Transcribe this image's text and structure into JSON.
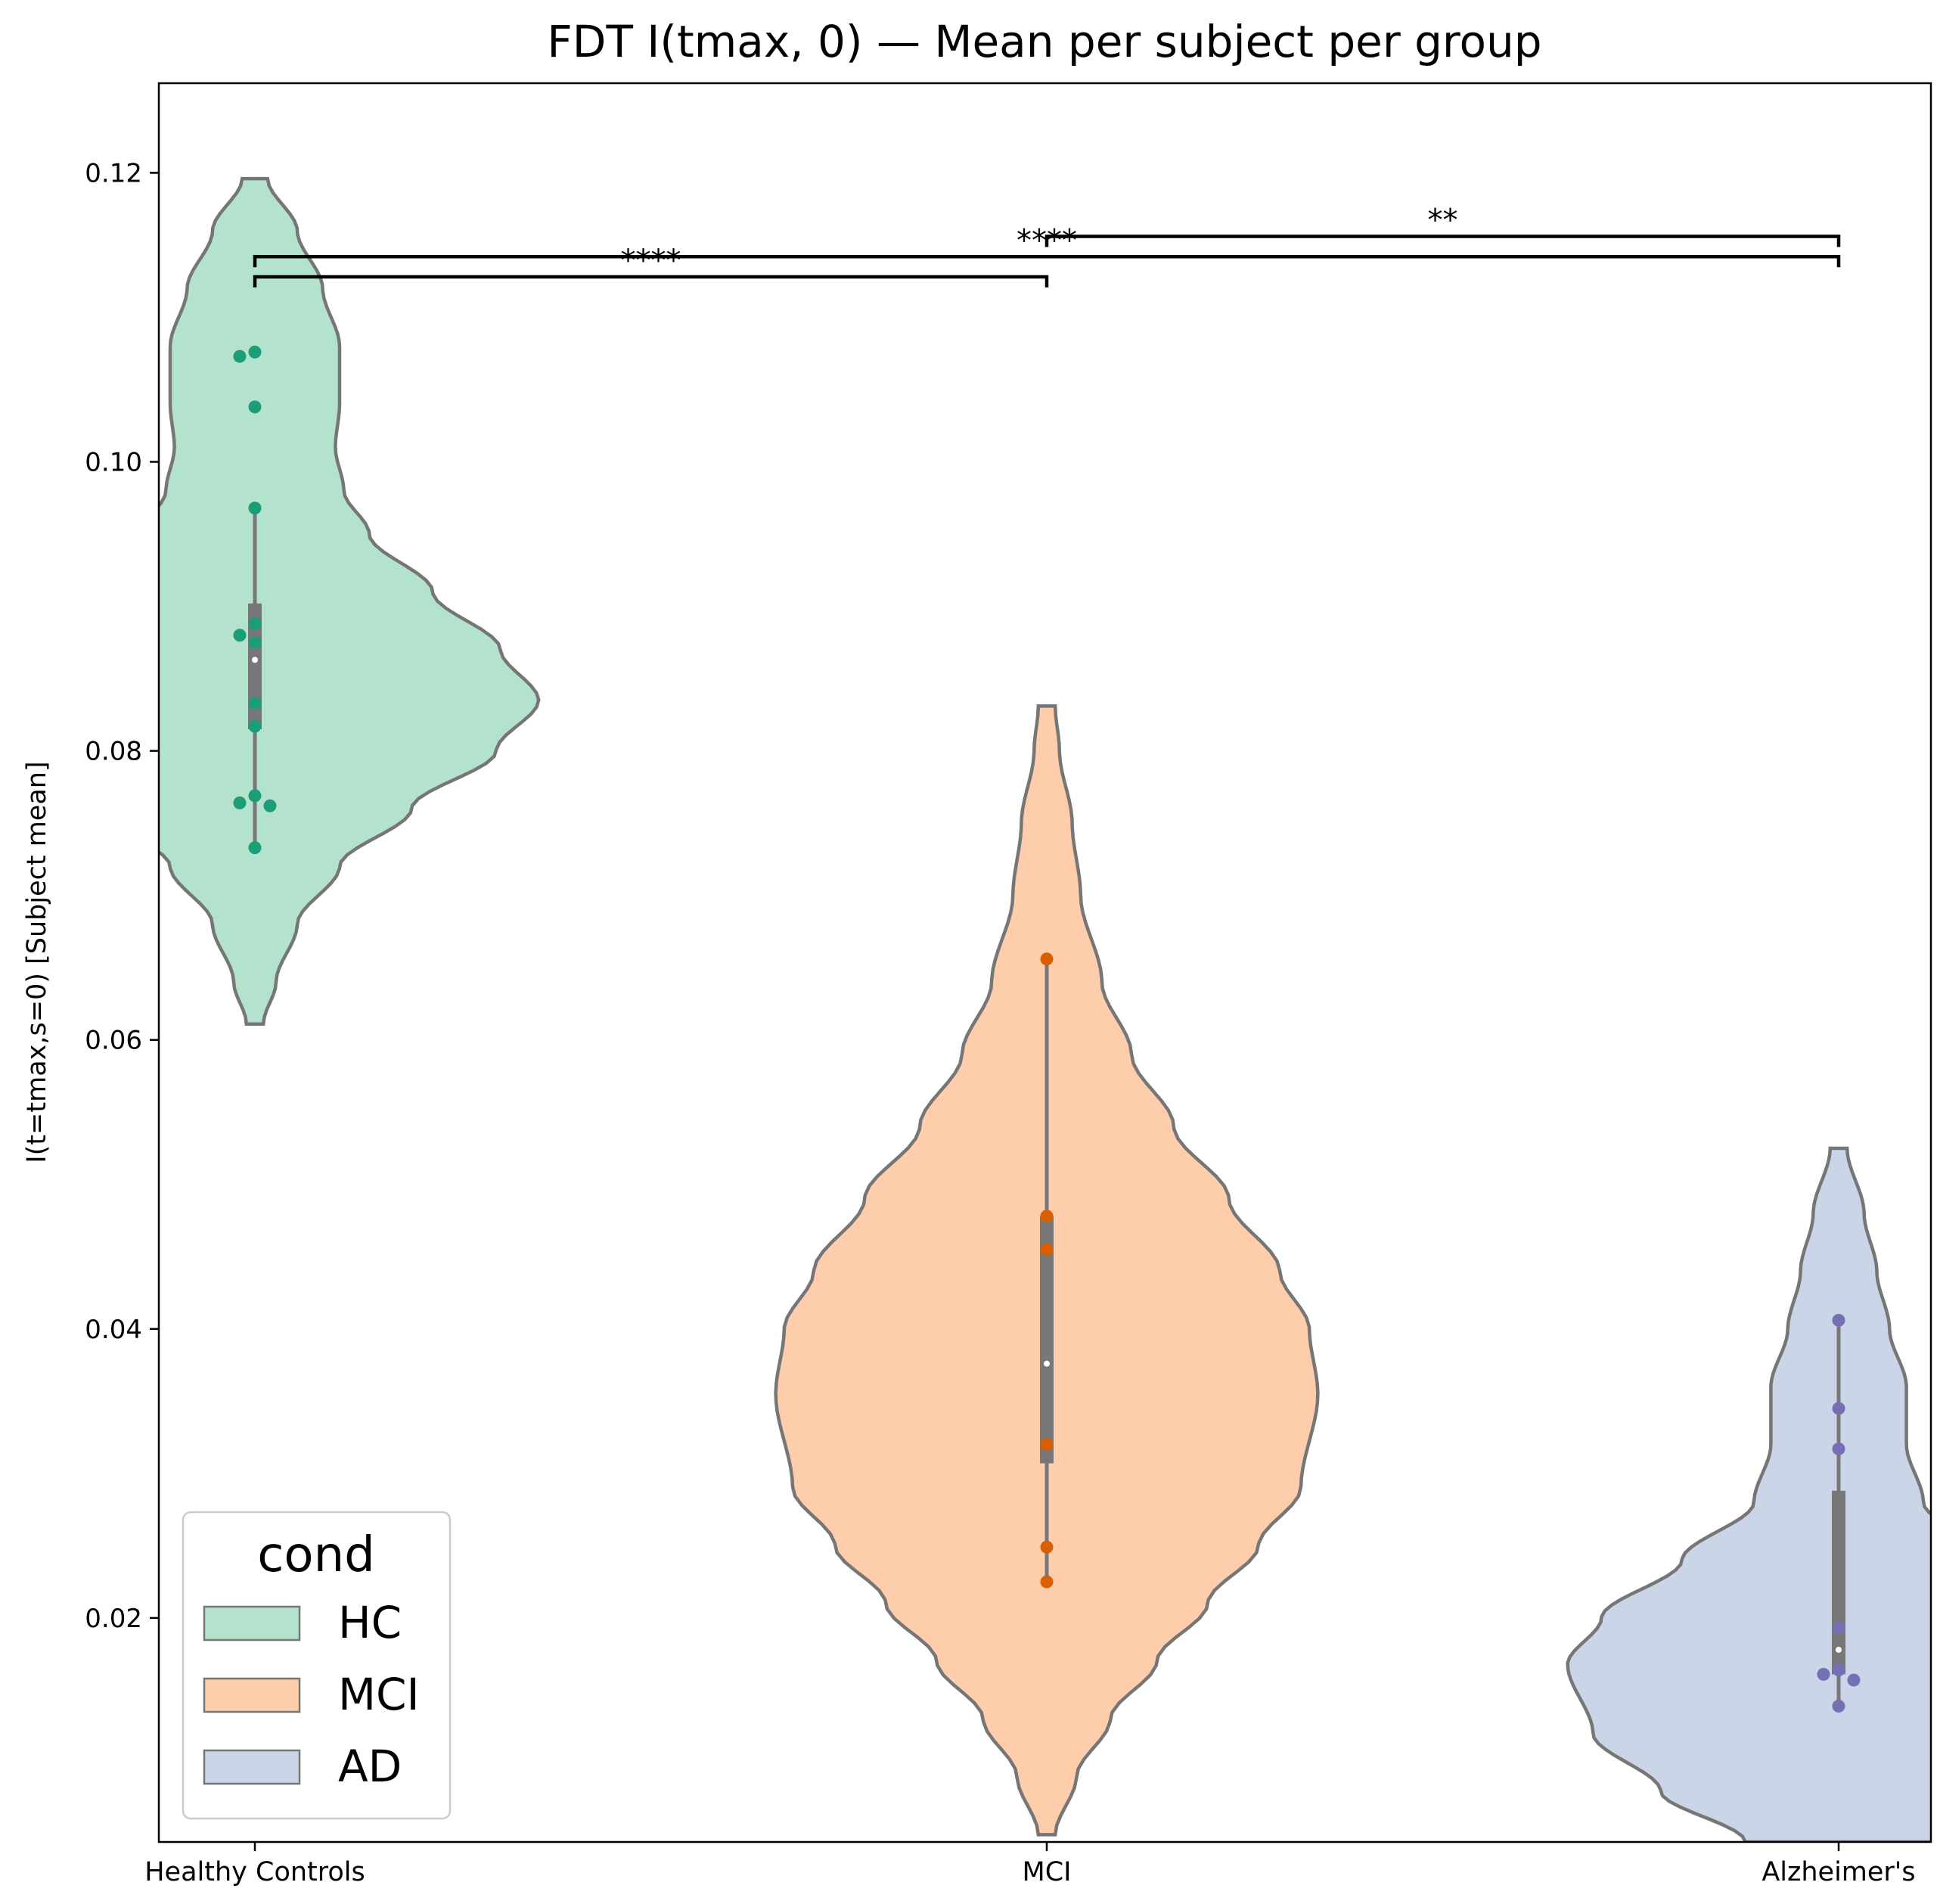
{
  "chart_data": {
    "type": "violin",
    "title": "FDT I(tmax, 0) — Mean per subject per group",
    "xlabel": "",
    "ylabel": "I(t=tmax,s=0) [Subject mean]",
    "ylim": [
      0.0045,
      0.1262
    ],
    "yticks": [
      "0.02",
      "0.04",
      "0.06",
      "0.08",
      "0.10",
      "0.12"
    ],
    "categories": [
      "Healthy Controls",
      "MCI",
      "Alzheimer's"
    ],
    "grid": false,
    "legend": {
      "title": "cond",
      "position": "lower-left",
      "entries": [
        {
          "label": "HC",
          "color": "#b3e2cd"
        },
        {
          "label": "MCI",
          "color": "#fdcdac"
        },
        {
          "label": "AD",
          "color": "#cbd5e8"
        }
      ]
    },
    "series": [
      {
        "group": "HC",
        "fill_color": "#b3e2cd",
        "point_color": "#1b9e77",
        "points": [
          0.1076,
          0.1073,
          0.1038,
          0.0968,
          0.0888,
          0.088,
          0.0875,
          0.0833,
          0.0817,
          0.0769,
          0.0764,
          0.0762,
          0.0733
        ],
        "median": 0.0863,
        "q1": 0.0815,
        "q3": 0.0902,
        "whisker_low": 0.0733,
        "whisker_high": 0.0968,
        "kde_min": 0.0611,
        "kde_max": 0.1196,
        "density": [
          [
            0.0611,
            0.02
          ],
          [
            0.064,
            0.05
          ],
          [
            0.068,
            0.1
          ],
          [
            0.072,
            0.2
          ],
          [
            0.076,
            0.37
          ],
          [
            0.08,
            0.57
          ],
          [
            0.0835,
            0.67
          ],
          [
            0.087,
            0.58
          ],
          [
            0.091,
            0.42
          ],
          [
            0.095,
            0.27
          ],
          [
            0.098,
            0.21
          ],
          [
            0.101,
            0.19
          ],
          [
            0.104,
            0.2
          ],
          [
            0.108,
            0.2
          ],
          [
            0.112,
            0.16
          ],
          [
            0.116,
            0.1
          ],
          [
            0.1196,
            0.03
          ]
        ]
      },
      {
        "group": "MCI",
        "fill_color": "#fdcdac",
        "point_color": "#d95f02",
        "points": [
          0.0656,
          0.0478,
          0.0455,
          0.032,
          0.0249,
          0.0225
        ],
        "median": 0.0376,
        "q1": 0.0307,
        "q3": 0.0478,
        "whisker_low": 0.0225,
        "whisker_high": 0.0656,
        "kde_min": 0.005,
        "kde_max": 0.0831,
        "density": [
          [
            0.005,
            0.02
          ],
          [
            0.009,
            0.07
          ],
          [
            0.013,
            0.15
          ],
          [
            0.017,
            0.26
          ],
          [
            0.021,
            0.38
          ],
          [
            0.025,
            0.5
          ],
          [
            0.029,
            0.6
          ],
          [
            0.0355,
            0.64
          ],
          [
            0.04,
            0.62
          ],
          [
            0.044,
            0.55
          ],
          [
            0.049,
            0.43
          ],
          [
            0.054,
            0.3
          ],
          [
            0.059,
            0.2
          ],
          [
            0.064,
            0.13
          ],
          [
            0.07,
            0.08
          ],
          [
            0.075,
            0.06
          ],
          [
            0.08,
            0.03
          ],
          [
            0.0831,
            0.02
          ]
        ]
      },
      {
        "group": "AD",
        "fill_color": "#cbd5e8",
        "point_color": "#7570b3",
        "points": [
          0.0406,
          0.0345,
          0.0317,
          0.0193,
          0.0164,
          0.0161,
          0.0157,
          0.0139
        ],
        "median": 0.0178,
        "q1": 0.0161,
        "q3": 0.0288,
        "whisker_low": 0.0139,
        "whisker_high": 0.0406,
        "kde_min": 0.0045,
        "kde_max": 0.0525,
        "density": [
          [
            0.0045,
            0.22
          ],
          [
            0.008,
            0.42
          ],
          [
            0.012,
            0.58
          ],
          [
            0.0168,
            0.64
          ],
          [
            0.02,
            0.56
          ],
          [
            0.024,
            0.37
          ],
          [
            0.028,
            0.2
          ],
          [
            0.032,
            0.16
          ],
          [
            0.036,
            0.16
          ],
          [
            0.04,
            0.12
          ],
          [
            0.044,
            0.09
          ],
          [
            0.048,
            0.06
          ],
          [
            0.0525,
            0.02
          ]
        ]
      }
    ],
    "annotations": [
      {
        "from": "Healthy Controls",
        "to": "MCI",
        "text": "****",
        "y": 0.1128
      },
      {
        "from": "Healthy Controls",
        "to": "Alzheimer's",
        "text": "****",
        "y": 0.1142
      },
      {
        "from": "MCI",
        "to": "Alzheimer's",
        "text": "**",
        "y": 0.1156
      }
    ]
  }
}
